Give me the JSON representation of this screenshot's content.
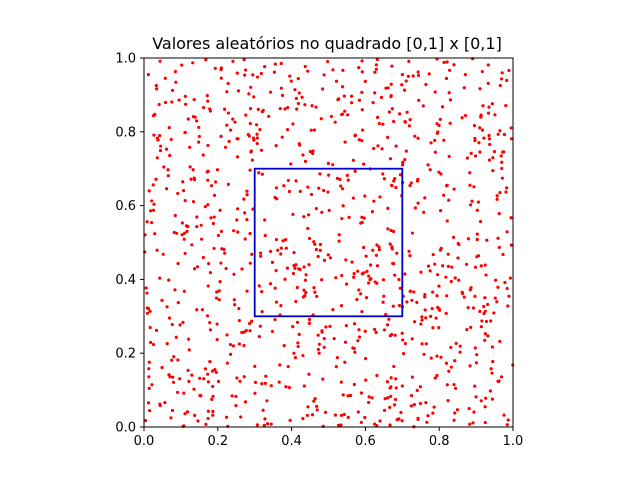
{
  "chart_data": {
    "type": "scatter",
    "title": "Valores aleatórios no quadrado [0,1] x [0,1]",
    "xlabel": "",
    "ylabel": "",
    "xlim": [
      0,
      1
    ],
    "ylim": [
      0,
      1
    ],
    "x_ticks": [
      "0.0",
      "0.2",
      "0.4",
      "0.6",
      "0.8",
      "1.0"
    ],
    "y_ticks": [
      "0.0",
      "0.2",
      "0.4",
      "0.6",
      "0.8",
      "1.0"
    ],
    "grid": false,
    "legend": "none",
    "point_color": "#ff0000",
    "point_count_estimate": 1000,
    "points": [
      [
        0.012,
        0.955
      ],
      [
        0.085,
        0.963
      ],
      [
        0.132,
        0.987
      ],
      [
        0.193,
        0.972
      ],
      [
        0.241,
        0.991
      ],
      [
        0.318,
        0.958
      ],
      [
        0.372,
        0.985
      ],
      [
        0.437,
        0.977
      ],
      [
        0.512,
        0.968
      ],
      [
        0.591,
        0.992
      ],
      [
        0.672,
        0.978
      ],
      [
        0.743,
        0.962
      ],
      [
        0.813,
        0.988
      ],
      [
        0.871,
        0.955
      ],
      [
        0.933,
        0.981
      ],
      [
        0.983,
        0.939
      ],
      [
        0.041,
        0.874
      ],
      [
        0.112,
        0.896
      ],
      [
        0.178,
        0.862
      ],
      [
        0.256,
        0.911
      ],
      [
        0.338,
        0.842
      ],
      [
        0.421,
        0.905
      ],
      [
        0.466,
        0.867
      ],
      [
        0.538,
        0.922
      ],
      [
        0.621,
        0.879
      ],
      [
        0.713,
        0.853
      ],
      [
        0.789,
        0.908
      ],
      [
        0.862,
        0.838
      ],
      [
        0.944,
        0.876
      ],
      [
        0.027,
        0.791
      ],
      [
        0.148,
        0.772
      ],
      [
        0.221,
        0.758
      ],
      [
        0.297,
        0.783
      ],
      [
        0.389,
        0.806
      ],
      [
        0.458,
        0.748
      ],
      [
        0.573,
        0.791
      ],
      [
        0.634,
        0.762
      ],
      [
        0.734,
        0.788
      ],
      [
        0.827,
        0.733
      ],
      [
        0.897,
        0.776
      ],
      [
        0.972,
        0.745
      ],
      [
        0.066,
        0.681
      ],
      [
        0.183,
        0.654
      ],
      [
        0.311,
        0.689
      ],
      [
        0.355,
        0.622
      ],
      [
        0.412,
        0.667
      ],
      [
        0.487,
        0.641
      ],
      [
        0.551,
        0.682
      ],
      [
        0.623,
        0.612
      ],
      [
        0.671,
        0.655
      ],
      [
        0.742,
        0.671
      ],
      [
        0.812,
        0.628
      ],
      [
        0.883,
        0.689
      ],
      [
        0.957,
        0.617
      ],
      [
        0.018,
        0.586
      ],
      [
        0.104,
        0.553
      ],
      [
        0.166,
        0.597
      ],
      [
        0.243,
        0.532
      ],
      [
        0.327,
        0.561
      ],
      [
        0.384,
        0.508
      ],
      [
        0.446,
        0.575
      ],
      [
        0.529,
        0.521
      ],
      [
        0.597,
        0.566
      ],
      [
        0.661,
        0.537
      ],
      [
        0.758,
        0.582
      ],
      [
        0.839,
        0.514
      ],
      [
        0.912,
        0.557
      ],
      [
        0.984,
        0.529
      ],
      [
        0.052,
        0.468
      ],
      [
        0.137,
        0.429
      ],
      [
        0.211,
        0.483
      ],
      [
        0.288,
        0.444
      ],
      [
        0.343,
        0.476
      ],
      [
        0.405,
        0.416
      ],
      [
        0.472,
        0.462
      ],
      [
        0.547,
        0.453
      ],
      [
        0.609,
        0.409
      ],
      [
        0.685,
        0.471
      ],
      [
        0.771,
        0.436
      ],
      [
        0.851,
        0.458
      ],
      [
        0.927,
        0.412
      ],
      [
        0.008,
        0.363
      ],
      [
        0.093,
        0.337
      ],
      [
        0.174,
        0.382
      ],
      [
        0.257,
        0.321
      ],
      [
        0.319,
        0.367
      ],
      [
        0.371,
        0.329
      ],
      [
        0.436,
        0.356
      ],
      [
        0.512,
        0.318
      ],
      [
        0.587,
        0.361
      ],
      [
        0.648,
        0.338
      ],
      [
        0.722,
        0.368
      ],
      [
        0.796,
        0.324
      ],
      [
        0.868,
        0.352
      ],
      [
        0.948,
        0.309
      ],
      [
        0.034,
        0.262
      ],
      [
        0.121,
        0.238
      ],
      [
        0.198,
        0.279
      ],
      [
        0.271,
        0.221
      ],
      [
        0.348,
        0.259
      ],
      [
        0.417,
        0.228
      ],
      [
        0.493,
        0.271
      ],
      [
        0.566,
        0.214
      ],
      [
        0.629,
        0.256
      ],
      [
        0.701,
        0.236
      ],
      [
        0.783,
        0.269
      ],
      [
        0.857,
        0.219
      ],
      [
        0.932,
        0.247
      ],
      [
        0.013,
        0.158
      ],
      [
        0.075,
        0.181
      ],
      [
        0.151,
        0.132
      ],
      [
        0.226,
        0.173
      ],
      [
        0.302,
        0.121
      ],
      [
        0.368,
        0.168
      ],
      [
        0.447,
        0.143
      ],
      [
        0.524,
        0.188
      ],
      [
        0.601,
        0.127
      ],
      [
        0.677,
        0.164
      ],
      [
        0.749,
        0.109
      ],
      [
        0.826,
        0.151
      ],
      [
        0.901,
        0.174
      ],
      [
        0.969,
        0.136
      ],
      [
        0.043,
        0.062
      ],
      [
        0.118,
        0.041
      ],
      [
        0.187,
        0.083
      ],
      [
        0.262,
        0.027
      ],
      [
        0.333,
        0.071
      ],
      [
        0.396,
        0.018
      ],
      [
        0.468,
        0.056
      ],
      [
        0.543,
        0.034
      ],
      [
        0.618,
        0.079
      ],
      [
        0.691,
        0.022
      ],
      [
        0.764,
        0.066
      ],
      [
        0.842,
        0.038
      ],
      [
        0.914,
        0.071
      ],
      [
        0.987,
        0.019
      ],
      [
        0.228,
        0.931
      ],
      [
        0.552,
        0.846
      ],
      [
        0.885,
        0.602
      ],
      [
        0.156,
        0.509
      ],
      [
        0.637,
        0.488
      ],
      [
        0.403,
        0.272
      ],
      [
        0.759,
        0.197
      ],
      [
        0.091,
        0.094
      ],
      [
        0.951,
        0.846
      ],
      [
        0.279,
        0.639
      ],
      [
        0.502,
        0.587
      ],
      [
        0.345,
        0.112
      ],
      [
        0.818,
        0.406
      ],
      [
        0.067,
        0.398
      ],
      [
        0.706,
        0.913
      ],
      [
        0.462,
        0.805
      ],
      [
        0.584,
        0.244
      ],
      [
        0.197,
        0.366
      ],
      [
        0.929,
        0.506
      ],
      [
        0.125,
        0.705
      ],
      [
        0.395,
        0.951
      ],
      [
        0.668,
        0.727
      ],
      [
        0.249,
        0.083
      ],
      [
        0.794,
        0.822
      ],
      [
        0.531,
        0.671
      ],
      [
        0.875,
        0.264
      ],
      [
        0.018,
        0.229
      ],
      [
        0.359,
        0.508
      ],
      [
        0.614,
        0.439
      ]
    ],
    "annotations": [
      {
        "type": "rectangle",
        "x": [
          0.3,
          0.7
        ],
        "y": [
          0.3,
          0.7
        ],
        "color": "#0000cc"
      }
    ]
  }
}
